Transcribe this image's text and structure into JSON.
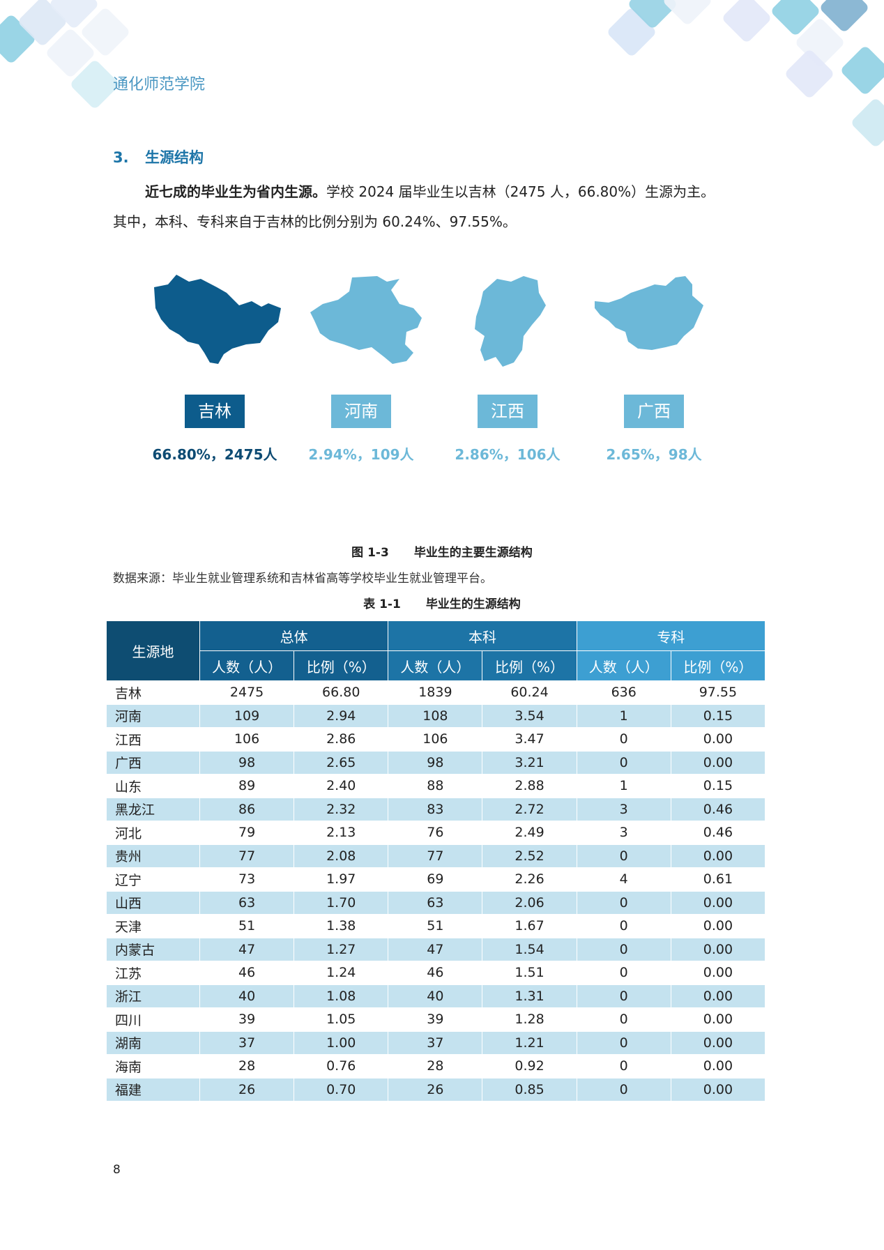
{
  "header": {
    "school": "通化师范学院"
  },
  "section": {
    "number": "3.",
    "title": "生源结构",
    "para_bold": "近七成的毕业生为省内生源。",
    "para_rest": "学校 2024 届毕业生以吉林（2475 人，66.80%）生源为主。",
    "para_line2": "其中，本科、专科来自于吉林的比例分别为 60.24%、97.55%。"
  },
  "regions": [
    {
      "name": "吉林",
      "stat": "66.80%，2475人",
      "color": "#0d5c8c",
      "stat_color": "#0d4b73"
    },
    {
      "name": "河南",
      "stat": "2.94%，109人",
      "color": "#6cb8d8",
      "stat_color": "#6cb8d8"
    },
    {
      "name": "江西",
      "stat": "2.86%，106人",
      "color": "#6cb8d8",
      "stat_color": "#6cb8d8"
    },
    {
      "name": "广西",
      "stat": "2.65%，98人",
      "color": "#6cb8d8",
      "stat_color": "#6cb8d8"
    }
  ],
  "figure": {
    "label": "图 1-3",
    "title": "毕业生的主要生源结构"
  },
  "source": "数据来源：毕业生就业管理系统和吉林省高等学校毕业生就业管理平台。",
  "table_caption": {
    "label": "表 1-1",
    "title": "毕业生的生源结构"
  },
  "table": {
    "col_place": "生源地",
    "groups": [
      "总体",
      "本科",
      "专科"
    ],
    "subheaders": [
      "人数（人）",
      "比例（%）",
      "人数（人）",
      "比例（%）",
      "人数（人）",
      "比例（%）"
    ],
    "rows": [
      [
        "吉林",
        "2475",
        "66.80",
        "1839",
        "60.24",
        "636",
        "97.55"
      ],
      [
        "河南",
        "109",
        "2.94",
        "108",
        "3.54",
        "1",
        "0.15"
      ],
      [
        "江西",
        "106",
        "2.86",
        "106",
        "3.47",
        "0",
        "0.00"
      ],
      [
        "广西",
        "98",
        "2.65",
        "98",
        "3.21",
        "0",
        "0.00"
      ],
      [
        "山东",
        "89",
        "2.40",
        "88",
        "2.88",
        "1",
        "0.15"
      ],
      [
        "黑龙江",
        "86",
        "2.32",
        "83",
        "2.72",
        "3",
        "0.46"
      ],
      [
        "河北",
        "79",
        "2.13",
        "76",
        "2.49",
        "3",
        "0.46"
      ],
      [
        "贵州",
        "77",
        "2.08",
        "77",
        "2.52",
        "0",
        "0.00"
      ],
      [
        "辽宁",
        "73",
        "1.97",
        "69",
        "2.26",
        "4",
        "0.61"
      ],
      [
        "山西",
        "63",
        "1.70",
        "63",
        "2.06",
        "0",
        "0.00"
      ],
      [
        "天津",
        "51",
        "1.38",
        "51",
        "1.67",
        "0",
        "0.00"
      ],
      [
        "内蒙古",
        "47",
        "1.27",
        "47",
        "1.54",
        "0",
        "0.00"
      ],
      [
        "江苏",
        "46",
        "1.24",
        "46",
        "1.51",
        "0",
        "0.00"
      ],
      [
        "浙江",
        "40",
        "1.08",
        "40",
        "1.31",
        "0",
        "0.00"
      ],
      [
        "四川",
        "39",
        "1.05",
        "39",
        "1.28",
        "0",
        "0.00"
      ],
      [
        "湖南",
        "37",
        "1.00",
        "37",
        "1.21",
        "0",
        "0.00"
      ],
      [
        "海南",
        "28",
        "0.76",
        "28",
        "0.92",
        "0",
        "0.00"
      ],
      [
        "福建",
        "26",
        "0.70",
        "26",
        "0.85",
        "0",
        "0.00"
      ]
    ]
  },
  "page_number": "8"
}
